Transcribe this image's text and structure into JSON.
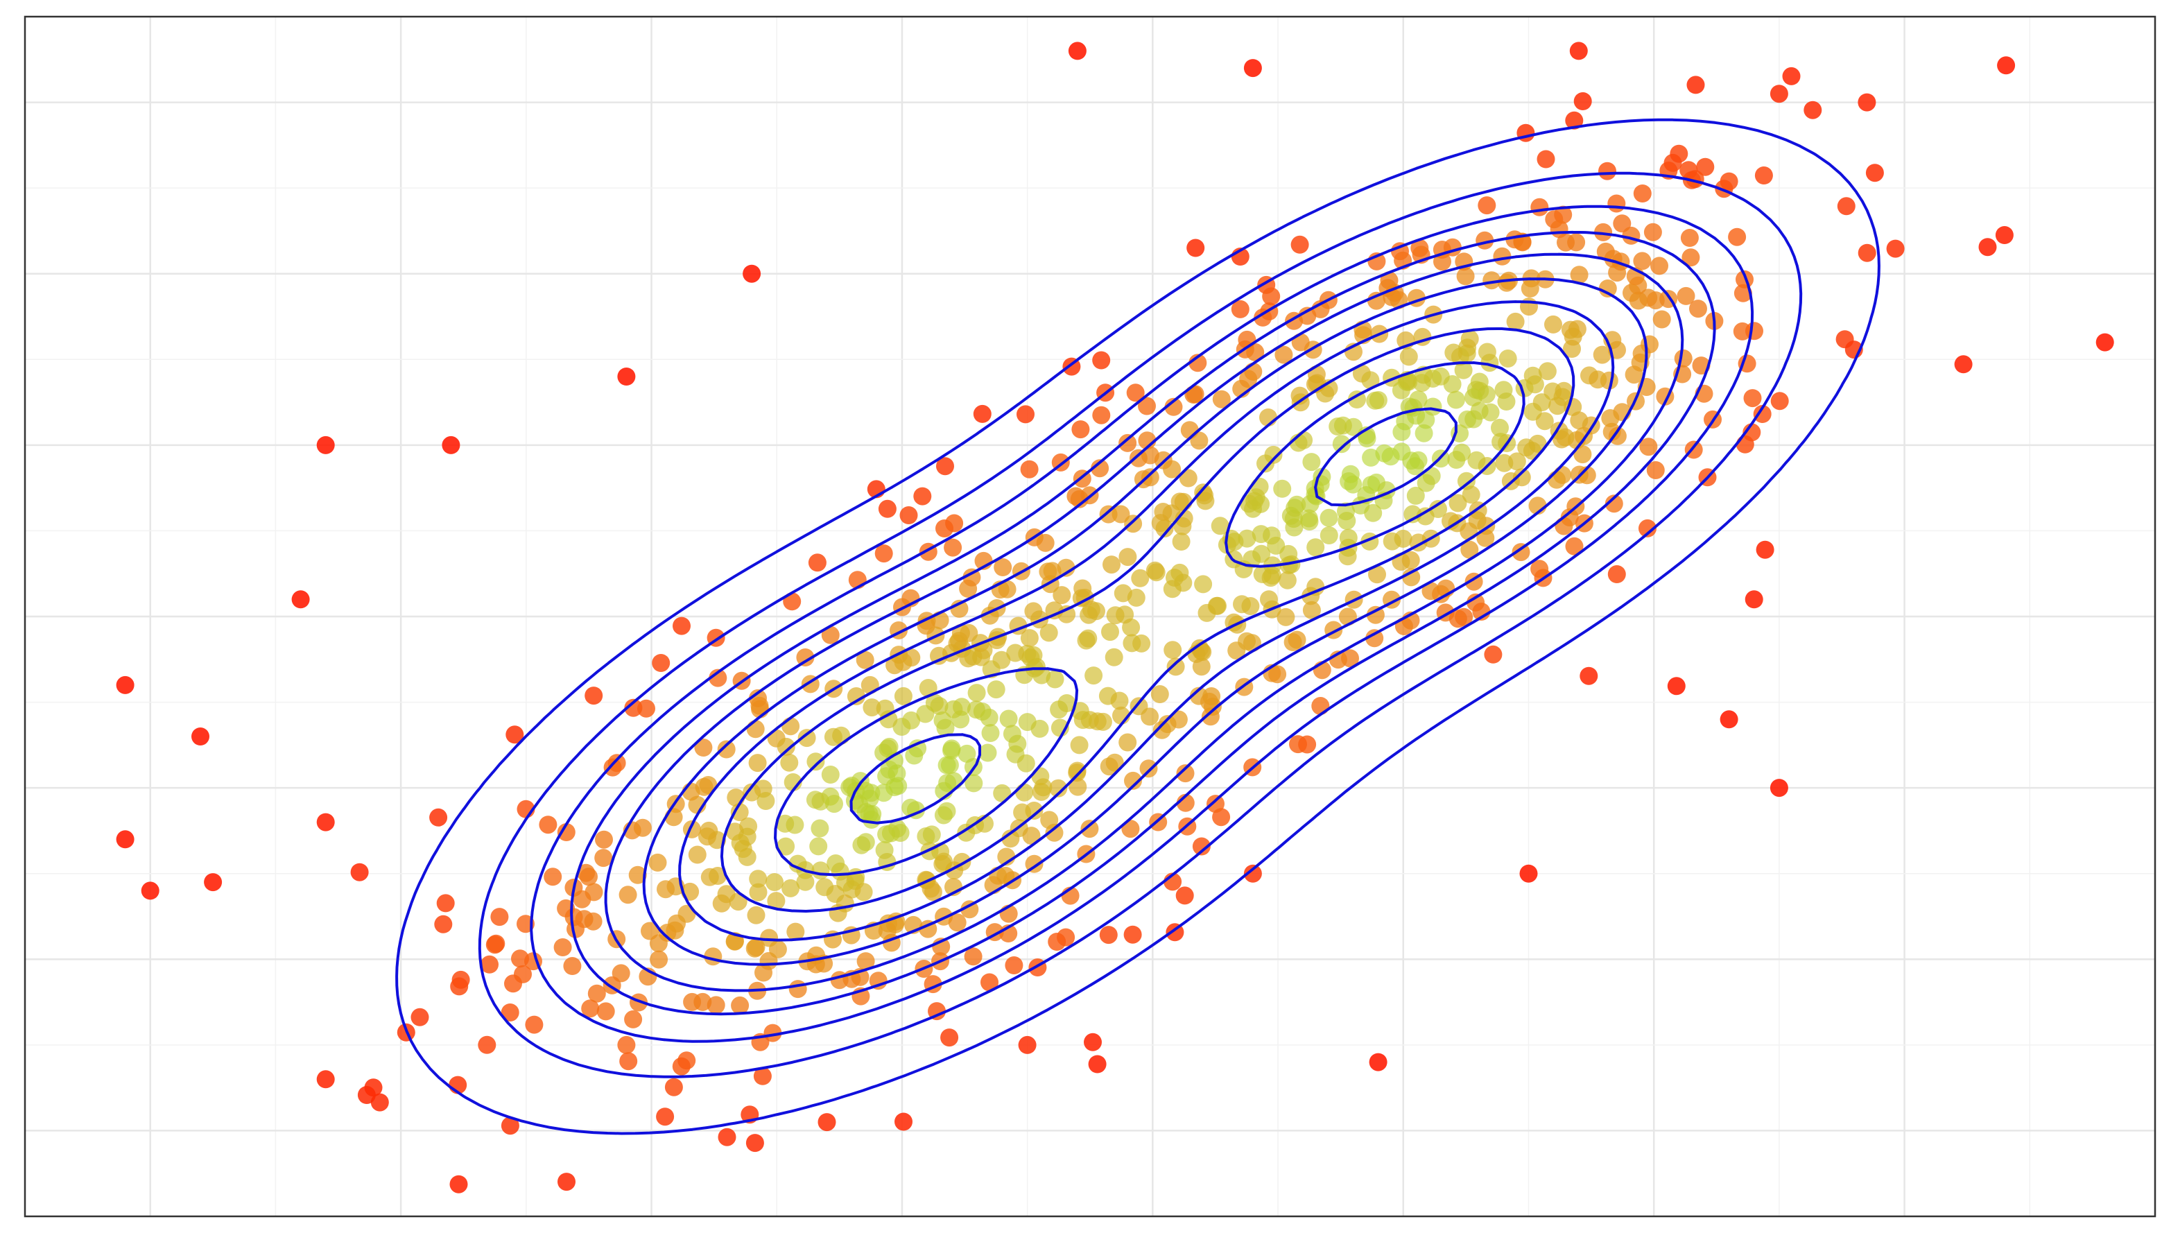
{
  "chart_data": {
    "type": "scatter",
    "title": "",
    "xlabel": "",
    "ylabel": "",
    "xlim": [
      -4.5,
      4.0
    ],
    "ylim": [
      -3.5,
      3.5
    ],
    "grid": true,
    "legend": "none",
    "colors": {
      "points_low_density": "#ff1a00",
      "points_high_density": "#7cff3a",
      "contour": "#1010dd",
      "border": "#333333"
    },
    "density_peaks": [
      {
        "x": -1.0,
        "y": -1.0
      },
      {
        "x": 1.0,
        "y": 1.0
      }
    ],
    "outlier_points": [
      {
        "x": -4.1,
        "y": -0.4
      },
      {
        "x": -3.8,
        "y": -0.7
      },
      {
        "x": -4.1,
        "y": -1.3
      },
      {
        "x": -4.0,
        "y": -1.6
      },
      {
        "x": -3.75,
        "y": -1.55
      },
      {
        "x": -3.4,
        "y": 0.1
      },
      {
        "x": -3.3,
        "y": -1.2
      },
      {
        "x": -3.3,
        "y": 1.0
      },
      {
        "x": -3.3,
        "y": -2.7
      },
      {
        "x": -2.8,
        "y": 1.0
      },
      {
        "x": -0.3,
        "y": 3.3
      },
      {
        "x": 0.35,
        "y": 2.1
      },
      {
        "x": 0.4,
        "y": 3.2
      },
      {
        "x": 1.7,
        "y": 3.3
      },
      {
        "x": 2.5,
        "y": 3.05
      },
      {
        "x": 2.85,
        "y": 3.0
      },
      {
        "x": 2.1,
        "y": 2.7
      },
      {
        "x": 2.2,
        "y": 1.3
      },
      {
        "x": 3.8,
        "y": 1.6
      },
      {
        "x": 2.4,
        "y": 0.1
      },
      {
        "x": 0.9,
        "y": -2.6
      },
      {
        "x": 0.4,
        "y": -1.5
      },
      {
        "x": 1.5,
        "y": -1.5
      },
      {
        "x": 2.5,
        "y": -1.0
      },
      {
        "x": 2.3,
        "y": -0.6
      },
      {
        "x": -1.6,
        "y": 2.0
      },
      {
        "x": -2.1,
        "y": 1.4
      },
      {
        "x": -0.5,
        "y": -2.5
      },
      {
        "x": -1.3,
        "y": -2.95
      },
      {
        "x": -2.1,
        "y": -2.5
      }
    ]
  }
}
